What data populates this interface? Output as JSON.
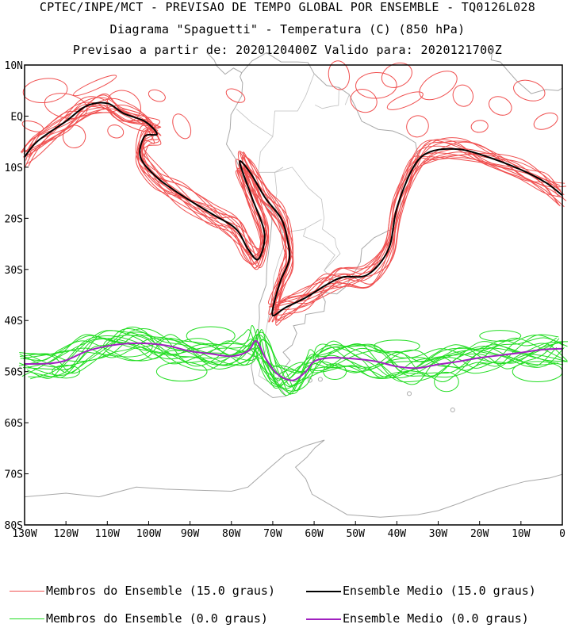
{
  "title": {
    "line1": "CPTEC/INPE/MCT - PREVISAO DE TEMPO GLOBAL POR ENSEMBLE - TQ0126L028",
    "line2": "Diagrama \"Spaguetti\" - Temperatura (C) (850 hPa)",
    "line3": "Previsao a partir de: 2020120400Z  Valido para: 2020121700Z"
  },
  "axes": {
    "lat_labels": [
      "10N",
      "EQ",
      "10S",
      "20S",
      "30S",
      "40S",
      "50S",
      "60S",
      "70S",
      "80S"
    ],
    "lon_labels": [
      "130W",
      "120W",
      "110W",
      "100W",
      "90W",
      "80W",
      "70W",
      "60W",
      "50W",
      "40W",
      "30W",
      "20W",
      "10W",
      "0"
    ]
  },
  "legend": {
    "members_15": "Membros do Ensemble (15.0 graus)",
    "mean_15": "Ensemble Medio (15.0 graus)",
    "members_0": "Membros do Ensemble (0.0 graus)",
    "mean_0": "Ensemble Medio (0.0 graus)"
  },
  "colors": {
    "members_15": "#f05050",
    "mean_15": "#000000",
    "members_0": "#22dd22",
    "mean_0": "#a020c0",
    "coastline": "#a8a8a8"
  },
  "map": {
    "lon_range": [
      -130,
      0
    ],
    "lat_range": [
      -80,
      10
    ],
    "projection": "equirectangular"
  }
}
